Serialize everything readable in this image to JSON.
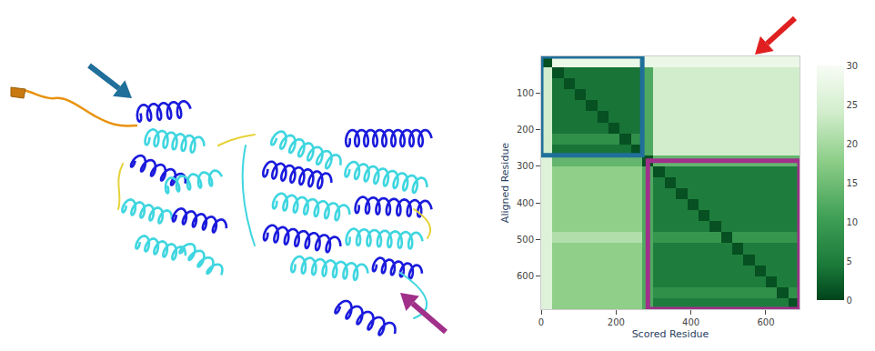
{
  "chart_data": {
    "type": "heatmap",
    "x_label": "Scored Residue",
    "y_label": "Aligned Residue",
    "x": [
      15,
      45,
      75,
      105,
      135,
      165,
      195,
      225,
      255,
      285,
      315,
      345,
      375,
      405,
      435,
      465,
      495,
      525,
      555,
      585,
      615,
      645,
      675
    ],
    "y": [
      15,
      45,
      75,
      105,
      135,
      165,
      195,
      225,
      255,
      285,
      315,
      345,
      375,
      405,
      435,
      465,
      495,
      525,
      555,
      585,
      615,
      645,
      675
    ],
    "z": [
      [
        1,
        28,
        28,
        28,
        28,
        28,
        28,
        28,
        28,
        28,
        28,
        28,
        28,
        28,
        28,
        28,
        28,
        28,
        28,
        28,
        28,
        28,
        28
      ],
      [
        24,
        1,
        4,
        4,
        4,
        4,
        4,
        4,
        4,
        12,
        24,
        24,
        24,
        24,
        24,
        24,
        24,
        24,
        24,
        24,
        24,
        24,
        24
      ],
      [
        24,
        4,
        1,
        4,
        4,
        4,
        4,
        4,
        4,
        12,
        24,
        24,
        24,
        24,
        24,
        24,
        24,
        24,
        24,
        24,
        24,
        24,
        24
      ],
      [
        24,
        4,
        4,
        1,
        4,
        4,
        4,
        4,
        4,
        12,
        24,
        24,
        24,
        24,
        24,
        24,
        24,
        24,
        24,
        24,
        24,
        24,
        24
      ],
      [
        24,
        4,
        4,
        4,
        1,
        4,
        4,
        4,
        4,
        12,
        24,
        24,
        24,
        24,
        24,
        24,
        24,
        24,
        24,
        24,
        24,
        24,
        24
      ],
      [
        24,
        4,
        4,
        4,
        4,
        1,
        4,
        4,
        4,
        12,
        24,
        24,
        24,
        24,
        24,
        24,
        24,
        24,
        24,
        24,
        24,
        24,
        24
      ],
      [
        24,
        4,
        4,
        4,
        4,
        4,
        1,
        4,
        4,
        12,
        24,
        24,
        24,
        24,
        24,
        24,
        24,
        24,
        24,
        24,
        24,
        24,
        24
      ],
      [
        24,
        8,
        8,
        8,
        8,
        8,
        8,
        1,
        8,
        12,
        24,
        24,
        24,
        24,
        24,
        24,
        24,
        24,
        24,
        24,
        24,
        24,
        24
      ],
      [
        24,
        4,
        4,
        4,
        4,
        4,
        4,
        4,
        1,
        12,
        24,
        24,
        24,
        24,
        24,
        24,
        24,
        24,
        24,
        24,
        24,
        24,
        24
      ],
      [
        26,
        14,
        14,
        14,
        14,
        14,
        14,
        14,
        14,
        1,
        14,
        14,
        14,
        14,
        14,
        14,
        14,
        14,
        14,
        14,
        14,
        14,
        14
      ],
      [
        26,
        18,
        18,
        18,
        18,
        18,
        18,
        18,
        18,
        12,
        1,
        5,
        5,
        5,
        5,
        5,
        5,
        5,
        5,
        5,
        5,
        5,
        5
      ],
      [
        26,
        18,
        18,
        18,
        18,
        18,
        18,
        18,
        18,
        12,
        5,
        1,
        5,
        5,
        5,
        5,
        5,
        5,
        5,
        5,
        5,
        5,
        5
      ],
      [
        26,
        18,
        18,
        18,
        18,
        18,
        18,
        18,
        18,
        12,
        5,
        5,
        1,
        5,
        5,
        5,
        5,
        5,
        5,
        5,
        5,
        5,
        5
      ],
      [
        26,
        18,
        18,
        18,
        18,
        18,
        18,
        18,
        18,
        12,
        5,
        5,
        5,
        1,
        5,
        5,
        5,
        5,
        5,
        5,
        5,
        5,
        5
      ],
      [
        26,
        18,
        18,
        18,
        18,
        18,
        18,
        18,
        18,
        12,
        5,
        5,
        5,
        5,
        1,
        5,
        5,
        5,
        5,
        5,
        5,
        5,
        5
      ],
      [
        26,
        18,
        18,
        18,
        18,
        18,
        18,
        18,
        18,
        12,
        5,
        5,
        5,
        5,
        5,
        1,
        5,
        5,
        5,
        5,
        5,
        5,
        5
      ],
      [
        26,
        21,
        21,
        21,
        21,
        21,
        21,
        21,
        21,
        12,
        9,
        9,
        9,
        9,
        9,
        9,
        1,
        9,
        9,
        9,
        9,
        9,
        9
      ],
      [
        26,
        18,
        18,
        18,
        18,
        18,
        18,
        18,
        18,
        12,
        5,
        5,
        5,
        5,
        5,
        5,
        5,
        1,
        5,
        5,
        5,
        5,
        5
      ],
      [
        26,
        18,
        18,
        18,
        18,
        18,
        18,
        18,
        18,
        12,
        5,
        5,
        5,
        5,
        5,
        5,
        5,
        5,
        1,
        5,
        5,
        5,
        5
      ],
      [
        26,
        18,
        18,
        18,
        18,
        18,
        18,
        18,
        18,
        12,
        5,
        5,
        5,
        5,
        5,
        5,
        5,
        5,
        5,
        1,
        5,
        5,
        5
      ],
      [
        26,
        18,
        18,
        18,
        18,
        18,
        18,
        18,
        18,
        12,
        5,
        5,
        5,
        5,
        5,
        5,
        5,
        5,
        5,
        5,
        1,
        5,
        5
      ],
      [
        26,
        18,
        18,
        18,
        18,
        18,
        18,
        18,
        18,
        12,
        8,
        8,
        8,
        8,
        8,
        8,
        8,
        8,
        8,
        8,
        8,
        1,
        8
      ],
      [
        26,
        18,
        18,
        18,
        18,
        18,
        18,
        18,
        18,
        12,
        5,
        5,
        5,
        5,
        5,
        5,
        5,
        5,
        5,
        5,
        5,
        5,
        1
      ]
    ],
    "xlim": [
      0,
      690
    ],
    "ylim": [
      690,
      0
    ],
    "xticks": [
      0,
      200,
      400,
      600
    ],
    "yticks": [
      100,
      200,
      300,
      400,
      500,
      600
    ],
    "colorbar_range": [
      0,
      30
    ],
    "colorbar_ticks": [
      0,
      5,
      10,
      15,
      20,
      25,
      30
    ],
    "domains": [
      {
        "start": 0,
        "end": 270,
        "color": "#1f6f9a"
      },
      {
        "start": 285,
        "end": 690,
        "color": "#a0308a"
      }
    ]
  }
}
